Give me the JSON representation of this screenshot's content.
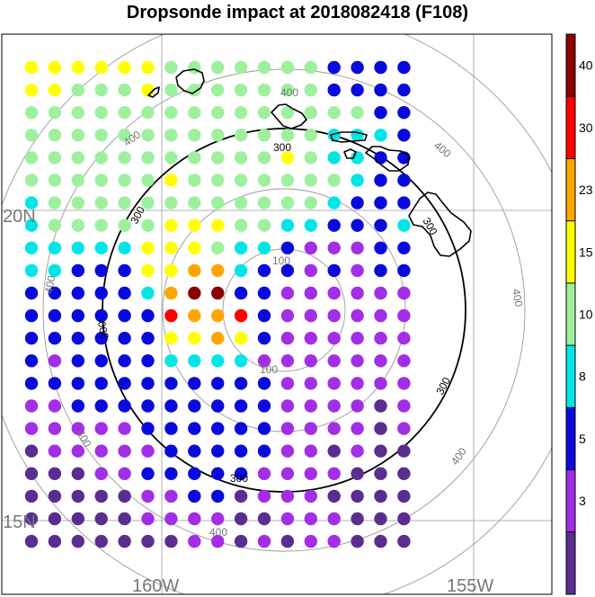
{
  "title": "Dropsonde impact at 2018082418 (F108)",
  "labels": {
    "lat_20": "20N",
    "lat_15": "15N",
    "lon_160": "160W",
    "lon_155": "155W"
  },
  "range_ring_labels": [
    "100",
    "300",
    "400"
  ],
  "colorbar": {
    "ticks": [
      "3",
      "5",
      "8",
      "10",
      "15",
      "23",
      "30",
      "40"
    ],
    "colors": [
      "#5a2d91",
      "#a22ee6",
      "#0a0adc",
      "#00e6e6",
      "#9ef09e",
      "#ffff00",
      "#ffa500",
      "#ff0000",
      "#8b0000"
    ]
  },
  "chart_data": {
    "type": "heatmap",
    "title": "Dropsonde impact at 2018082418 (F108)",
    "color_classes": [
      "#5a2d91",
      "#a22ee6",
      "#0a0adc",
      "#00e6e6",
      "#9ef09e",
      "#ffff00",
      "#ffa500",
      "#ff0000",
      "#8b0000"
    ],
    "class_bounds": [
      3,
      5,
      8,
      10,
      15,
      23,
      30,
      40
    ],
    "grid_rows": [
      "55555544444442222",
      "55444544444442222",
      "44444444444444422",
      "44444444444443332",
      "44444444444543322",
      "44444454444444322",
      "34444444444443222",
      "34444455544332223",
      "33333555433211122",
      "33222556632212122",
      "22222368822111111",
      "22222276672111111",
      "22222255652111111",
      "21222233331111111",
      "22222222222111111",
      "11222222222111101",
      "11111222222111101",
      "01111122222110100",
      "00011222221111000",
      "00000112201110000",
      "00000111100111000",
      "00000001101011000"
    ]
  }
}
